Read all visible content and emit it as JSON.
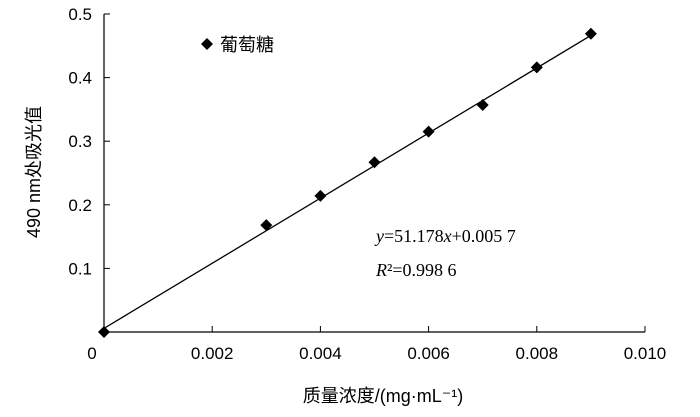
{
  "chart_data": {
    "type": "scatter",
    "xlabel": "质量浓度/(mg·mL⁻¹)",
    "ylabel": "490 nm处吸光值",
    "xlim": [
      0,
      0.01
    ],
    "ylim": [
      0,
      0.5
    ],
    "x_ticks": [
      "0",
      "0.002",
      "0.004",
      "0.006",
      "0.008",
      "0.010"
    ],
    "y_ticks": [
      "0.1",
      "0.2",
      "0.3",
      "0.4",
      "0.5"
    ],
    "grid": false,
    "legend_position": "top-left",
    "series": [
      {
        "name": "葡萄糖",
        "marker": "diamond",
        "color": "#000000",
        "x": [
          0,
          0.003,
          0.004,
          0.005,
          0.006,
          0.007,
          0.008,
          0.009
        ],
        "y": [
          0.0,
          0.168,
          0.214,
          0.267,
          0.315,
          0.357,
          0.416,
          0.469
        ]
      }
    ],
    "trendline": {
      "type": "linear",
      "slope": 51.178,
      "intercept": 0.0057,
      "x_range": [
        0,
        0.009
      ]
    },
    "equation": {
      "line1": {
        "y": "y",
        "eq": "=51.178",
        "x": "x",
        "rest": "+0.005 7"
      },
      "line2": {
        "r": "R",
        "rest": "²=0.998 6"
      }
    }
  }
}
